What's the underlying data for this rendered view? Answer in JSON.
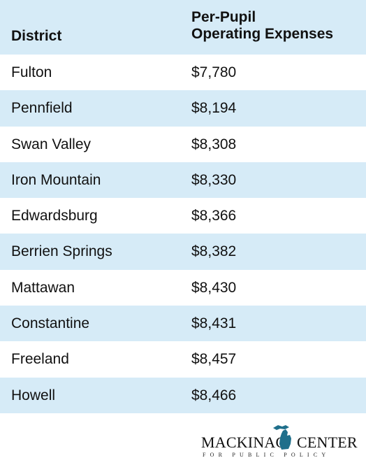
{
  "table": {
    "header": {
      "district": "District",
      "expenses_line1": "Per-Pupil",
      "expenses_line2": "Operating Expenses"
    },
    "rows": [
      {
        "district": "Fulton",
        "expense": "$7,780"
      },
      {
        "district": "Pennfield",
        "expense": "$8,194"
      },
      {
        "district": "Swan Valley",
        "expense": "$8,308"
      },
      {
        "district": "Iron Mountain",
        "expense": "$8,330"
      },
      {
        "district": "Edwardsburg",
        "expense": "$8,366"
      },
      {
        "district": "Berrien Springs",
        "expense": "$8,382"
      },
      {
        "district": "Mattawan",
        "expense": "$8,430"
      },
      {
        "district": "Constantine",
        "expense": "$8,431"
      },
      {
        "district": "Freeland",
        "expense": "$8,457"
      },
      {
        "district": "Howell",
        "expense": "$8,466"
      }
    ]
  },
  "logo": {
    "name_left": "MACKINAC",
    "name_right": "CENTER",
    "tagline": "FOR PUBLIC POLICY",
    "icon": "michigan-map-icon"
  },
  "colors": {
    "row_alt": "#d6ebf7",
    "logo_accent": "#1f6f8b"
  }
}
